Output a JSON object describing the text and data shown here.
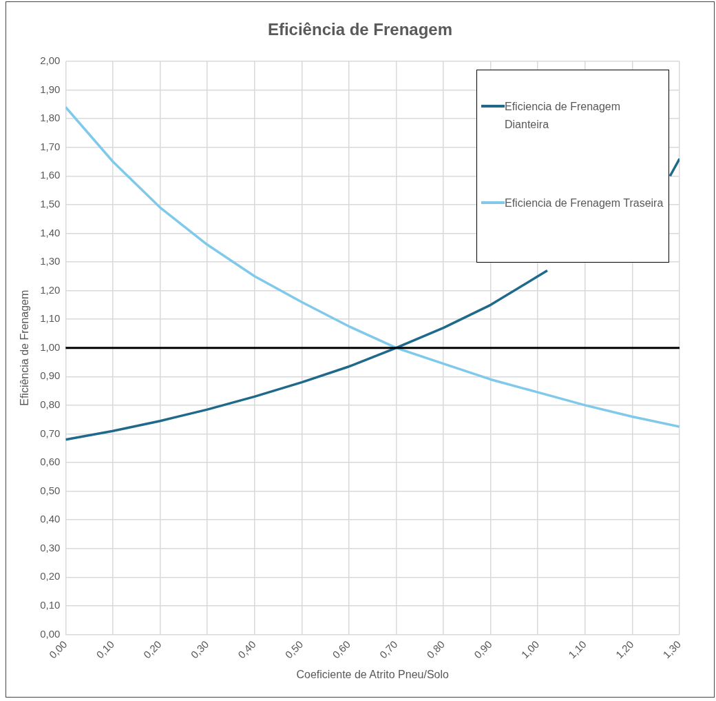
{
  "chart_data": {
    "type": "line",
    "title": "Eficiência de Frenagem",
    "xlabel": "Coeficiente de Atrito Pneu/Solo",
    "ylabel": "Eficiência de Frenagem",
    "series": [
      {
        "name": "Eficiencia de Frenagem Dianteira",
        "color": "#1f6a8a",
        "x": [
          0,
          0.1,
          0.2,
          0.3,
          0.4,
          0.5,
          0.6,
          0.7,
          0.8,
          0.9,
          1.0,
          1.02,
          1.1,
          1.2,
          1.28,
          1.3
        ],
        "values": [
          0.68,
          0.71,
          0.745,
          0.785,
          0.83,
          0.88,
          0.935,
          1.0,
          1.07,
          1.15,
          1.25,
          1.27,
          null,
          null,
          1.6,
          1.66
        ]
      },
      {
        "name": "Eficiencia de Frenagem Traseira",
        "color": "#7fc9eb",
        "x": [
          0,
          0.1,
          0.2,
          0.3,
          0.4,
          0.5,
          0.6,
          0.7,
          0.8,
          0.9,
          1.0,
          1.1,
          1.2,
          1.3
        ],
        "values": [
          1.84,
          1.65,
          1.49,
          1.36,
          1.25,
          1.16,
          1.075,
          1.0,
          0.945,
          0.89,
          0.845,
          0.8,
          0.76,
          0.725
        ]
      }
    ],
    "xlim": [
      0,
      1.3
    ],
    "xticks": [
      {
        "value": 0,
        "label": "0,00"
      },
      {
        "value": 0.1,
        "label": "0,10"
      },
      {
        "value": 0.2,
        "label": "0,20"
      },
      {
        "value": 0.3,
        "label": "0,30"
      },
      {
        "value": 0.4,
        "label": "0,40"
      },
      {
        "value": 0.5,
        "label": "0,50"
      },
      {
        "value": 0.6,
        "label": "0,60"
      },
      {
        "value": 0.7,
        "label": "0,70"
      },
      {
        "value": 0.8,
        "label": "0,80"
      },
      {
        "value": 0.9,
        "label": "0,90"
      },
      {
        "value": 1.0,
        "label": "1,00"
      },
      {
        "value": 1.1,
        "label": "1,10"
      },
      {
        "value": 1.2,
        "label": "1,20"
      },
      {
        "value": 1.3,
        "label": "1,30"
      }
    ],
    "ylim": [
      0,
      2
    ],
    "yticks": [
      {
        "value": 0,
        "label": "0,00"
      },
      {
        "value": 0.1,
        "label": "0,10"
      },
      {
        "value": 0.2,
        "label": "0,20"
      },
      {
        "value": 0.3,
        "label": "0,30"
      },
      {
        "value": 0.4,
        "label": "0,40"
      },
      {
        "value": 0.5,
        "label": "0,50"
      },
      {
        "value": 0.6,
        "label": "0,60"
      },
      {
        "value": 0.7,
        "label": "0,70"
      },
      {
        "value": 0.8,
        "label": "0,80"
      },
      {
        "value": 0.9,
        "label": "0,90"
      },
      {
        "value": 1.0,
        "label": "1,00"
      },
      {
        "value": 1.1,
        "label": "1,10"
      },
      {
        "value": 1.2,
        "label": "1,20"
      },
      {
        "value": 1.3,
        "label": "1,30"
      },
      {
        "value": 1.4,
        "label": "1,40"
      },
      {
        "value": 1.5,
        "label": "1,50"
      },
      {
        "value": 1.6,
        "label": "1,60"
      },
      {
        "value": 1.7,
        "label": "1,70"
      },
      {
        "value": 1.8,
        "label": "1,80"
      },
      {
        "value": 1.9,
        "label": "1,90"
      },
      {
        "value": 2.0,
        "label": "2,00"
      }
    ],
    "ref_lines": [
      {
        "axis": "y",
        "value": 1.0,
        "color": "#000000"
      }
    ],
    "grid": true,
    "legend": "top right"
  }
}
